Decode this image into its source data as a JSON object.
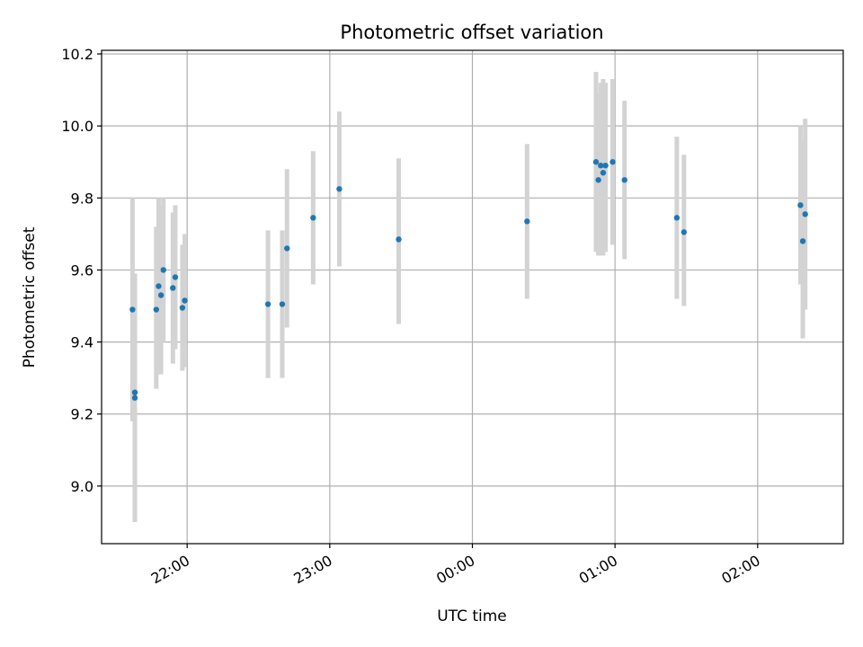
{
  "chart_data": {
    "type": "scatter",
    "title": "Photometric offset variation",
    "xlabel": "UTC time",
    "ylabel": "Photometric offset",
    "x_axis_type": "time",
    "xlim": [
      "21:24",
      "02:36"
    ],
    "ylim": [
      8.84,
      10.21
    ],
    "yticks": [
      9.0,
      9.2,
      9.4,
      9.6,
      9.8,
      10.0,
      10.2
    ],
    "xticks": [
      "22:00",
      "23:00",
      "00:00",
      "01:00",
      "02:00"
    ],
    "grid": true,
    "colors": {
      "points": "#1f77b4",
      "errorbars": "#d3d3d3",
      "grid": "#b0b0b0"
    },
    "points": [
      {
        "time": "21:37",
        "y": 9.49,
        "yerr_low": 9.18,
        "yerr_high": 9.8
      },
      {
        "time": "21:38",
        "y": 9.26,
        "yerr_low": 8.9,
        "yerr_high": 9.59
      },
      {
        "time": "21:38",
        "y": 9.245,
        "yerr_low": 8.9,
        "yerr_high": 9.59
      },
      {
        "time": "21:47",
        "y": 9.49,
        "yerr_low": 9.27,
        "yerr_high": 9.72
      },
      {
        "time": "21:48",
        "y": 9.555,
        "yerr_low": 9.31,
        "yerr_high": 9.8
      },
      {
        "time": "21:49",
        "y": 9.53,
        "yerr_low": 9.31,
        "yerr_high": 9.78
      },
      {
        "time": "21:50",
        "y": 9.6,
        "yerr_low": 9.4,
        "yerr_high": 9.8
      },
      {
        "time": "21:54",
        "y": 9.55,
        "yerr_low": 9.34,
        "yerr_high": 9.76
      },
      {
        "time": "21:55",
        "y": 9.58,
        "yerr_low": 9.38,
        "yerr_high": 9.78
      },
      {
        "time": "21:58",
        "y": 9.495,
        "yerr_low": 9.32,
        "yerr_high": 9.67
      },
      {
        "time": "21:59",
        "y": 9.515,
        "yerr_low": 9.33,
        "yerr_high": 9.7
      },
      {
        "time": "22:34",
        "y": 9.505,
        "yerr_low": 9.3,
        "yerr_high": 9.71
      },
      {
        "time": "22:40",
        "y": 9.505,
        "yerr_low": 9.3,
        "yerr_high": 9.71
      },
      {
        "time": "22:42",
        "y": 9.66,
        "yerr_low": 9.44,
        "yerr_high": 9.88
      },
      {
        "time": "22:53",
        "y": 9.745,
        "yerr_low": 9.56,
        "yerr_high": 9.93
      },
      {
        "time": "23:04",
        "y": 9.825,
        "yerr_low": 9.61,
        "yerr_high": 10.04
      },
      {
        "time": "23:29",
        "y": 9.685,
        "yerr_low": 9.45,
        "yerr_high": 9.91
      },
      {
        "time": "00:23",
        "y": 9.735,
        "yerr_low": 9.52,
        "yerr_high": 9.95
      },
      {
        "time": "00:52",
        "y": 9.9,
        "yerr_low": 9.65,
        "yerr_high": 10.15
      },
      {
        "time": "00:53",
        "y": 9.85,
        "yerr_low": 9.64,
        "yerr_high": 10.09
      },
      {
        "time": "00:54",
        "y": 9.89,
        "yerr_low": 9.64,
        "yerr_high": 10.12
      },
      {
        "time": "00:55",
        "y": 9.87,
        "yerr_low": 9.64,
        "yerr_high": 10.13
      },
      {
        "time": "00:56",
        "y": 9.89,
        "yerr_low": 9.65,
        "yerr_high": 10.12
      },
      {
        "time": "00:59",
        "y": 9.9,
        "yerr_low": 9.67,
        "yerr_high": 10.13
      },
      {
        "time": "01:04",
        "y": 9.85,
        "yerr_low": 9.63,
        "yerr_high": 10.07
      },
      {
        "time": "01:26",
        "y": 9.745,
        "yerr_low": 9.52,
        "yerr_high": 9.97
      },
      {
        "time": "01:29",
        "y": 9.705,
        "yerr_low": 9.5,
        "yerr_high": 9.92
      },
      {
        "time": "02:18",
        "y": 9.78,
        "yerr_low": 9.56,
        "yerr_high": 10.0
      },
      {
        "time": "02:19",
        "y": 9.68,
        "yerr_low": 9.41,
        "yerr_high": 9.96
      },
      {
        "time": "02:20",
        "y": 9.755,
        "yerr_low": 9.49,
        "yerr_high": 10.02
      }
    ]
  }
}
